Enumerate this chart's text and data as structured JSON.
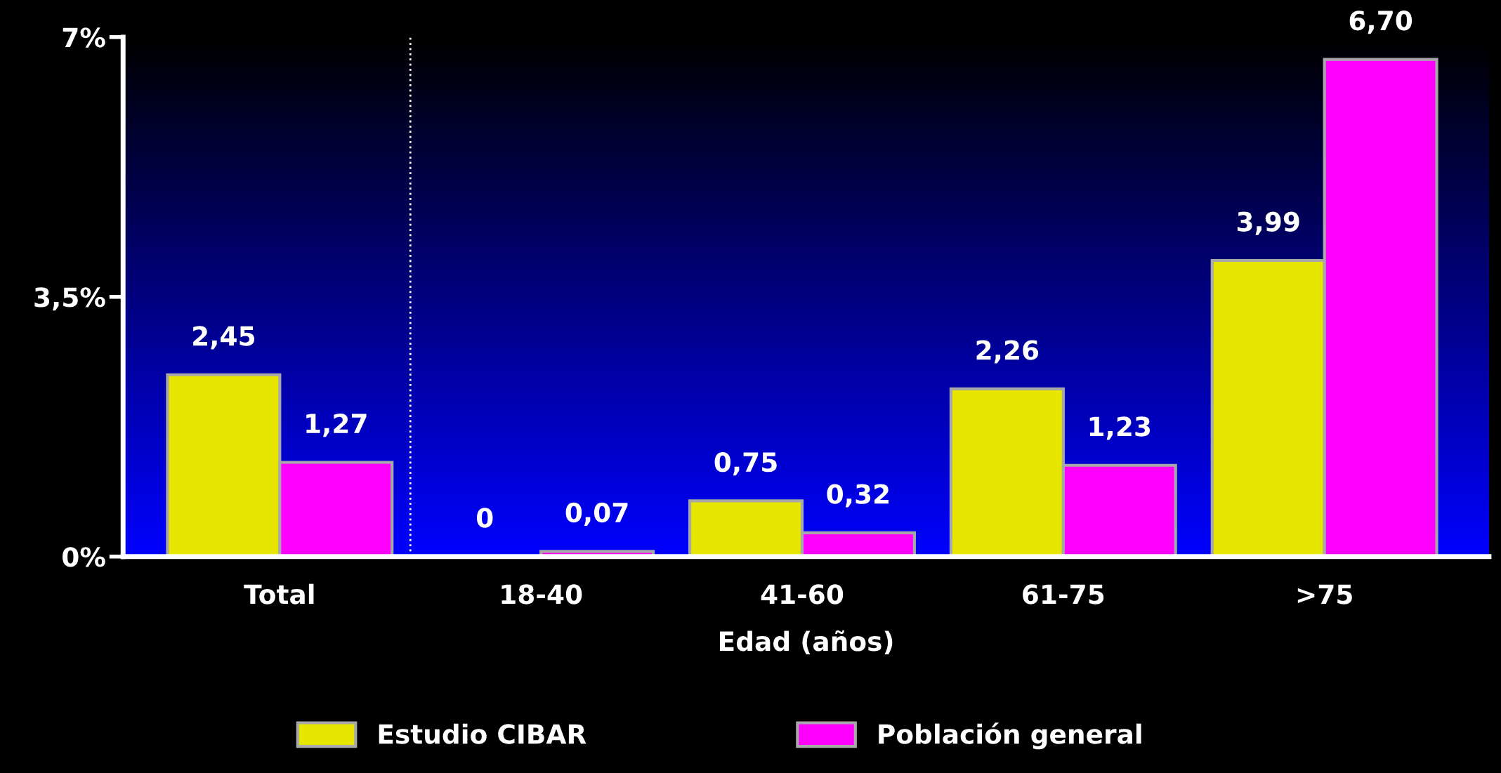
{
  "chart_data": {
    "type": "bar",
    "xlabel": "Edad (años)",
    "categories": [
      "Total",
      "18-40",
      "41-60",
      "61-75",
      ">75"
    ],
    "series": [
      {
        "name": "Estudio CIBAR",
        "color": "#e6e600",
        "values": [
          2.45,
          0,
          0.75,
          2.26,
          3.99
        ],
        "value_labels": [
          "2,45",
          "0",
          "0,75",
          "2,26",
          "3,99"
        ]
      },
      {
        "name": "Población general",
        "color": "#ff00ff",
        "values": [
          1.27,
          0.07,
          0.32,
          1.23,
          6.7
        ],
        "value_labels": [
          "1,27",
          "0,07",
          "0,32",
          "1,23",
          "6,70"
        ]
      }
    ],
    "ylim": [
      0,
      7
    ],
    "yticks": [
      {
        "value": 0,
        "label": "0%"
      },
      {
        "value": 3.5,
        "label": "3,5%"
      },
      {
        "value": 7,
        "label": "7%"
      }
    ],
    "grid": false,
    "legend": "bottom"
  }
}
